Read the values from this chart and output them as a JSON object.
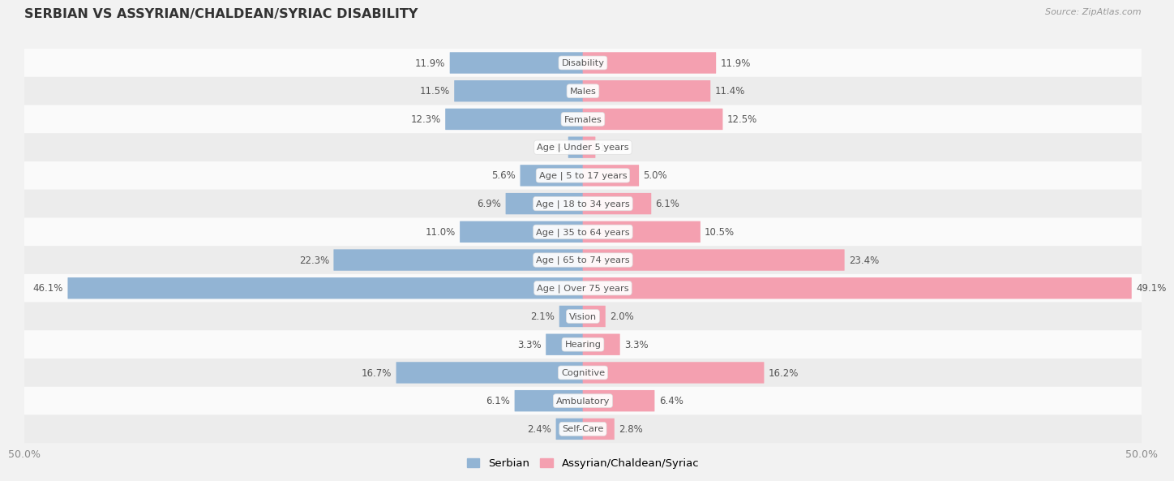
{
  "title": "SERBIAN VS ASSYRIAN/CHALDEAN/SYRIAC DISABILITY",
  "source": "Source: ZipAtlas.com",
  "categories": [
    "Disability",
    "Males",
    "Females",
    "Age | Under 5 years",
    "Age | 5 to 17 years",
    "Age | 18 to 34 years",
    "Age | 35 to 64 years",
    "Age | 65 to 74 years",
    "Age | Over 75 years",
    "Vision",
    "Hearing",
    "Cognitive",
    "Ambulatory",
    "Self-Care"
  ],
  "serbian_values": [
    11.9,
    11.5,
    12.3,
    1.3,
    5.6,
    6.9,
    11.0,
    22.3,
    46.1,
    2.1,
    3.3,
    16.7,
    6.1,
    2.4
  ],
  "assyrian_values": [
    11.9,
    11.4,
    12.5,
    1.1,
    5.0,
    6.1,
    10.5,
    23.4,
    49.1,
    2.0,
    3.3,
    16.2,
    6.4,
    2.8
  ],
  "max_value": 50.0,
  "serbian_color": "#92b4d4",
  "assyrian_color": "#f4a0b0",
  "bar_height": 0.72,
  "background_color": "#f2f2f2",
  "row_bg_light": "#fafafa",
  "row_bg_dark": "#ececec",
  "legend_serbian": "Serbian",
  "legend_assyrian": "Assyrian/Chaldean/Syriac",
  "value_fontsize": 8.5,
  "label_fontsize": 8.2,
  "title_fontsize": 11.5
}
